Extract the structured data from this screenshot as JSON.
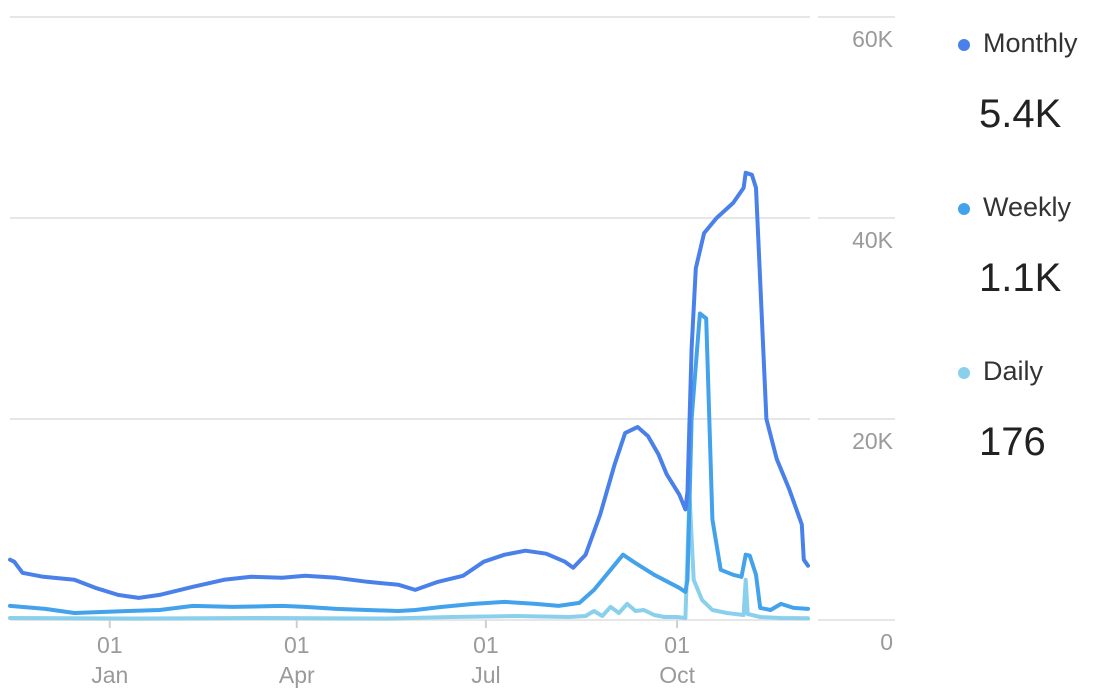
{
  "chart_data": {
    "type": "line",
    "title": "",
    "xlabel": "",
    "ylabel": "",
    "ylim": [
      0,
      60000
    ],
    "grid": true,
    "legend_position": "right",
    "y_ticks": [
      "60K",
      "40K",
      "20K",
      "0"
    ],
    "y_tick_values": [
      60000,
      40000,
      20000,
      0
    ],
    "x_ticks": [
      {
        "day": "01",
        "month": "Jan",
        "date": "2022-01-01"
      },
      {
        "day": "01",
        "month": "Apr",
        "date": "2022-04-01"
      },
      {
        "day": "01",
        "month": "Jul",
        "date": "2022-07-01"
      },
      {
        "day": "01",
        "month": "Oct",
        "date": "2022-10-01"
      }
    ],
    "x_range": [
      "2021-11-14",
      "2022-12-03"
    ],
    "series": [
      {
        "name": "Monthly",
        "latest": "5.4K",
        "color": "#4a80ea",
        "points": [
          [
            "2021-11-14",
            6000
          ],
          [
            "2021-11-16",
            5800
          ],
          [
            "2021-11-20",
            4700
          ],
          [
            "2021-11-30",
            4300
          ],
          [
            "2021-12-15",
            4000
          ],
          [
            "2021-12-25",
            3200
          ],
          [
            "2022-01-05",
            2500
          ],
          [
            "2022-01-15",
            2200
          ],
          [
            "2022-01-25",
            2500
          ],
          [
            "2022-02-10",
            3300
          ],
          [
            "2022-02-25",
            4000
          ],
          [
            "2022-03-10",
            4300
          ],
          [
            "2022-03-25",
            4200
          ],
          [
            "2022-04-05",
            4400
          ],
          [
            "2022-04-20",
            4200
          ],
          [
            "2022-05-05",
            3800
          ],
          [
            "2022-05-20",
            3500
          ],
          [
            "2022-05-28",
            3000
          ],
          [
            "2022-06-08",
            3800
          ],
          [
            "2022-06-20",
            4400
          ],
          [
            "2022-06-30",
            5800
          ],
          [
            "2022-07-10",
            6500
          ],
          [
            "2022-07-20",
            6900
          ],
          [
            "2022-07-30",
            6600
          ],
          [
            "2022-08-08",
            5800
          ],
          [
            "2022-08-12",
            5200
          ],
          [
            "2022-08-18",
            6500
          ],
          [
            "2022-08-25",
            10500
          ],
          [
            "2022-09-01",
            15500
          ],
          [
            "2022-09-06",
            18600
          ],
          [
            "2022-09-12",
            19200
          ],
          [
            "2022-09-17",
            18300
          ],
          [
            "2022-09-22",
            16500
          ],
          [
            "2022-09-26",
            14500
          ],
          [
            "2022-10-02",
            12500
          ],
          [
            "2022-10-05",
            11000
          ],
          [
            "2022-10-06",
            12800
          ],
          [
            "2022-10-08",
            27000
          ],
          [
            "2022-10-10",
            35000
          ],
          [
            "2022-10-14",
            38500
          ],
          [
            "2022-10-20",
            40000
          ],
          [
            "2022-10-28",
            41500
          ],
          [
            "2022-11-02",
            43000
          ],
          [
            "2022-11-03",
            44500
          ],
          [
            "2022-11-06",
            44300
          ],
          [
            "2022-11-08",
            43000
          ],
          [
            "2022-11-13",
            20000
          ],
          [
            "2022-11-18",
            16000
          ],
          [
            "2022-11-24",
            13000
          ],
          [
            "2022-11-30",
            9500
          ],
          [
            "2022-12-01",
            6000
          ],
          [
            "2022-12-03",
            5400
          ]
        ]
      },
      {
        "name": "Weekly",
        "latest": "1.1K",
        "color": "#42a2ec",
        "points": [
          [
            "2021-11-14",
            1400
          ],
          [
            "2021-12-01",
            1100
          ],
          [
            "2021-12-15",
            700
          ],
          [
            "2022-01-10",
            900
          ],
          [
            "2022-01-25",
            1000
          ],
          [
            "2022-02-10",
            1400
          ],
          [
            "2022-03-01",
            1300
          ],
          [
            "2022-03-25",
            1400
          ],
          [
            "2022-04-05",
            1300
          ],
          [
            "2022-04-20",
            1100
          ],
          [
            "2022-05-05",
            1000
          ],
          [
            "2022-05-20",
            900
          ],
          [
            "2022-05-28",
            1000
          ],
          [
            "2022-06-10",
            1300
          ],
          [
            "2022-06-25",
            1600
          ],
          [
            "2022-07-10",
            1800
          ],
          [
            "2022-07-25",
            1600
          ],
          [
            "2022-08-05",
            1400
          ],
          [
            "2022-08-15",
            1700
          ],
          [
            "2022-08-22",
            3000
          ],
          [
            "2022-08-30",
            5000
          ],
          [
            "2022-09-05",
            6500
          ],
          [
            "2022-09-10",
            5800
          ],
          [
            "2022-09-20",
            4500
          ],
          [
            "2022-10-02",
            3200
          ],
          [
            "2022-10-05",
            2800
          ],
          [
            "2022-10-06",
            4000
          ],
          [
            "2022-10-08",
            20000
          ],
          [
            "2022-10-12",
            30500
          ],
          [
            "2022-10-15",
            30000
          ],
          [
            "2022-10-18",
            10000
          ],
          [
            "2022-10-22",
            5000
          ],
          [
            "2022-10-28",
            4500
          ],
          [
            "2022-11-01",
            4300
          ],
          [
            "2022-11-03",
            6500
          ],
          [
            "2022-11-05",
            6400
          ],
          [
            "2022-11-08",
            4500
          ],
          [
            "2022-11-10",
            1200
          ],
          [
            "2022-11-15",
            1000
          ],
          [
            "2022-11-20",
            1600
          ],
          [
            "2022-11-26",
            1200
          ],
          [
            "2022-12-03",
            1100
          ]
        ]
      },
      {
        "name": "Daily",
        "latest": "176",
        "color": "#8ad0ec",
        "points": [
          [
            "2021-11-14",
            200
          ],
          [
            "2022-01-15",
            150
          ],
          [
            "2022-03-15",
            200
          ],
          [
            "2022-05-15",
            150
          ],
          [
            "2022-06-15",
            300
          ],
          [
            "2022-07-15",
            400
          ],
          [
            "2022-08-10",
            300
          ],
          [
            "2022-08-18",
            400
          ],
          [
            "2022-08-22",
            900
          ],
          [
            "2022-08-26",
            400
          ],
          [
            "2022-08-30",
            1300
          ],
          [
            "2022-09-03",
            700
          ],
          [
            "2022-09-07",
            1600
          ],
          [
            "2022-09-11",
            900
          ],
          [
            "2022-09-15",
            1000
          ],
          [
            "2022-09-20",
            500
          ],
          [
            "2022-09-25",
            300
          ],
          [
            "2022-10-01",
            300
          ],
          [
            "2022-10-05",
            200
          ],
          [
            "2022-10-07",
            12500
          ],
          [
            "2022-10-09",
            4000
          ],
          [
            "2022-10-13",
            2000
          ],
          [
            "2022-10-18",
            1000
          ],
          [
            "2022-10-25",
            700
          ],
          [
            "2022-11-02",
            500
          ],
          [
            "2022-11-03",
            4000
          ],
          [
            "2022-11-04",
            600
          ],
          [
            "2022-11-10",
            300
          ],
          [
            "2022-11-20",
            200
          ],
          [
            "2022-12-03",
            176
          ]
        ]
      }
    ]
  }
}
